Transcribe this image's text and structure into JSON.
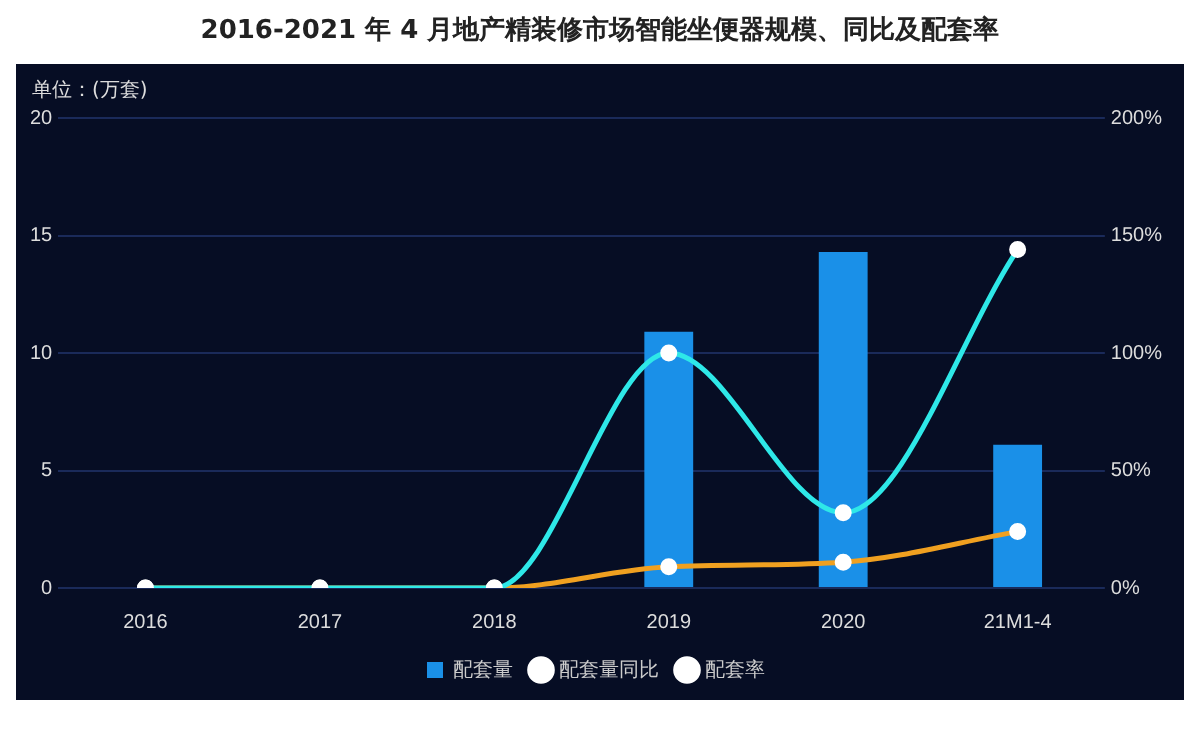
{
  "chart_data": {
    "type": "bar",
    "title": "2016-2021 年 4 月地产精装修市场智能坐便器规模、同比及配套率",
    "ylabel": "单位：(万套)",
    "categories": [
      "2016",
      "2017",
      "2018",
      "2019",
      "2020",
      "21M1-4"
    ],
    "series": [
      {
        "name": "配套量",
        "color": "#1a90e8",
        "values": [
          0,
          0,
          0,
          10.9,
          14.3,
          6.1
        ]
      },
      {
        "name": "配套量同比",
        "type": "line",
        "axis": "y2",
        "color": "#2ee8e8",
        "values": [
          0,
          0,
          0,
          100,
          32,
          144
        ]
      },
      {
        "name": "配套率",
        "type": "line",
        "axis": "y2",
        "color": "#f0a020",
        "values": [
          0,
          0,
          0,
          9,
          11,
          24
        ]
      }
    ],
    "ylim": [
      0,
      20
    ],
    "yticks": [
      0,
      5,
      10,
      15,
      20
    ],
    "y2lim": [
      0,
      200
    ],
    "y2ticks": [
      {
        "value": 0,
        "label": "0%"
      },
      {
        "value": 50,
        "label": "50%"
      },
      {
        "value": 100,
        "label": "100%"
      },
      {
        "value": 150,
        "label": "150%"
      },
      {
        "value": 200,
        "label": "200%"
      }
    ],
    "grid": "y",
    "legend": "bottom",
    "marker": "circle"
  }
}
